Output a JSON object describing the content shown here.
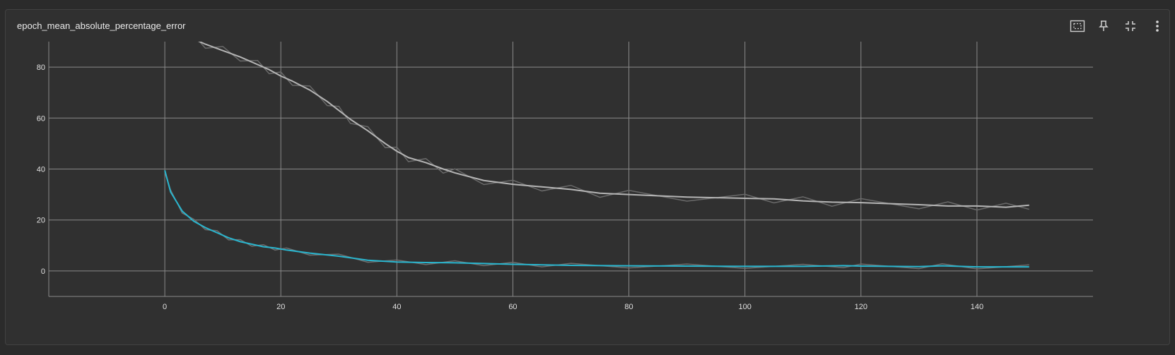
{
  "card": {
    "title": "epoch_mean_absolute_percentage_error"
  },
  "toolbar": [
    {
      "name": "fit-domain-icon"
    },
    {
      "name": "pin-icon"
    },
    {
      "name": "collapse-icon"
    },
    {
      "name": "more-vert-icon"
    }
  ],
  "colors": {
    "background": "#303030",
    "grid": "#8a8a8a",
    "text": "#e0e0e0",
    "train_smoothed": "#29b6cf",
    "train_raw": "#6e6e6e",
    "validation_smoothed": "#b5b5b5",
    "validation_raw": "#6a6a6a"
  },
  "chart_data": {
    "type": "line",
    "title": "epoch_mean_absolute_percentage_error",
    "xlabel": "",
    "ylabel": "",
    "xlim": [
      -20,
      160
    ],
    "ylim": [
      -10,
      90
    ],
    "x_ticks": [
      0,
      20,
      40,
      60,
      80,
      100,
      120,
      140
    ],
    "y_ticks": [
      0,
      20,
      40,
      60,
      80
    ],
    "grid": true,
    "legend": "none",
    "series": [
      {
        "color": "#29b6cf",
        "raw_color": "#6e6e6e",
        "x": [
          0,
          1,
          3,
          5,
          7,
          9,
          11,
          13,
          15,
          17,
          19,
          21,
          25,
          30,
          35,
          40,
          45,
          50,
          55,
          60,
          65,
          70,
          80,
          90,
          100,
          110,
          117,
          120,
          130,
          134,
          140,
          149
        ],
        "y": [
          39.5,
          31,
          23.5,
          19.5,
          17,
          15,
          13,
          11.5,
          10.5,
          9.5,
          9,
          8.2,
          7,
          5.8,
          4.2,
          3.5,
          3.3,
          3.2,
          2.9,
          2.6,
          2.4,
          2.2,
          2.0,
          1.9,
          1.8,
          1.8,
          2.1,
          1.9,
          1.7,
          2.0,
          1.6,
          1.6
        ]
      },
      {
        "color": "#b5b5b5",
        "raw_color": "#6a6a6a",
        "x": [
          3,
          5,
          7,
          10,
          13,
          16,
          18,
          20,
          22,
          25,
          28,
          30,
          32,
          35,
          38,
          40,
          42,
          45,
          48,
          50,
          55,
          60,
          65,
          70,
          75,
          80,
          90,
          100,
          105,
          110,
          115,
          120,
          130,
          135,
          140,
          145,
          149
        ],
        "y": [
          93,
          91,
          89,
          86.5,
          84,
          81,
          79,
          76.5,
          74.5,
          71,
          66.5,
          63,
          59.5,
          55,
          50,
          47,
          44.5,
          42.5,
          40,
          38.5,
          35.5,
          34,
          33,
          32,
          30.5,
          30,
          29,
          28.5,
          28.3,
          27.5,
          27,
          26.8,
          26,
          25.5,
          25.5,
          25,
          25.8
        ]
      }
    ]
  }
}
